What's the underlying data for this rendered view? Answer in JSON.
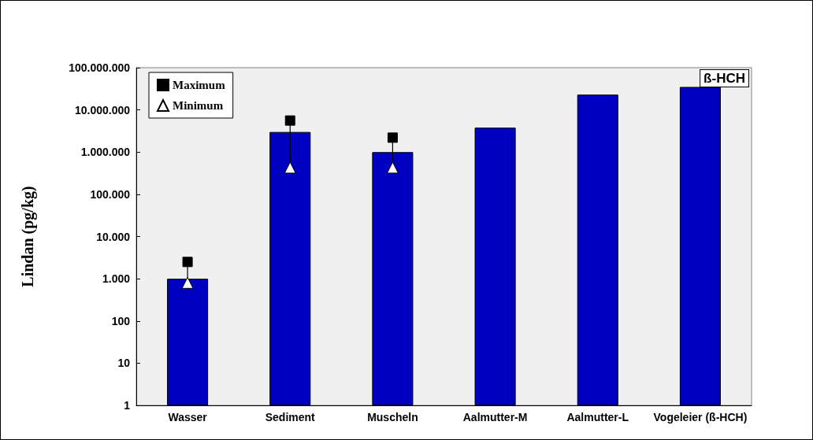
{
  "chart_data": {
    "type": "bar",
    "ylabel": "Lindan (pg/kg)",
    "categories": [
      "Wasser",
      "Sediment",
      "Muscheln",
      "Aalmutter-M",
      "Aalmutter-L",
      "Vogeleier (ß-HCH)"
    ],
    "series": [
      {
        "color": "#0000c0",
        "values": [
          1000,
          3000000,
          1000000,
          3800000,
          23000000,
          35000000
        ]
      },
      {
        "type": "scatter",
        "name": "Maximum",
        "color": "#000000",
        "marker": "square",
        "x": [
          "Wasser",
          "Sediment",
          "Muscheln"
        ],
        "values": [
          2500,
          5600000,
          2200000
        ]
      },
      {
        "type": "scatter",
        "name": "Minimum",
        "color": "#ffffff",
        "marker": "triangle",
        "x": [
          "Wasser",
          "Sediment",
          "Muscheln"
        ],
        "values": [
          800,
          430000,
          430000
        ]
      }
    ],
    "log": "y",
    "ylim": [
      1,
      100000000
    ],
    "yticks": [
      1,
      10,
      100,
      {
        "value": 1000,
        "label": "1.000"
      },
      {
        "value": 10000,
        "label": "10.000"
      },
      {
        "value": 100000,
        "label": "100.000"
      },
      {
        "value": 1000000,
        "label": "1.000.000"
      },
      {
        "value": 10000000,
        "label": "10.000.000"
      },
      {
        "value": 100000000,
        "label": "100.000.000"
      }
    ],
    "annotations": [
      "ß-HCH"
    ],
    "grid": false,
    "legend": "top left"
  }
}
